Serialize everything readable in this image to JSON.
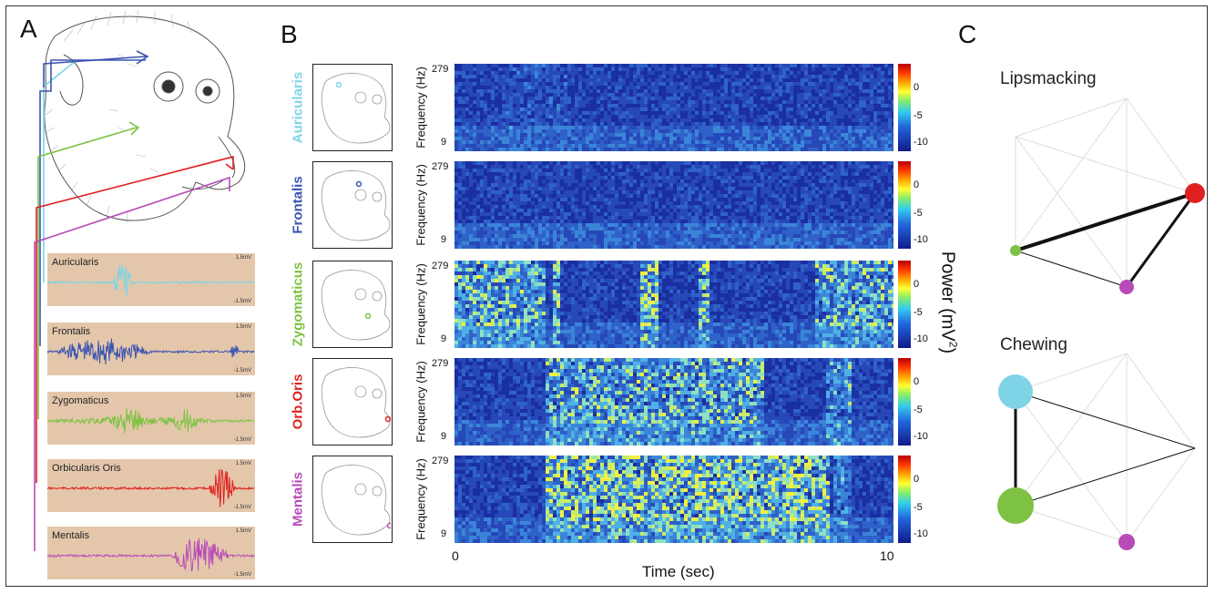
{
  "panels": {
    "a": "A",
    "b": "B",
    "c": "C"
  },
  "emg": [
    {
      "name": "Auricularis",
      "hi": "1.5mV",
      "lo": "-1.5mV",
      "color": "#7fd3e6"
    },
    {
      "name": "Frontalis",
      "hi": "1.5mV",
      "lo": "-1.5mV",
      "color": "#3a55b0"
    },
    {
      "name": "Zygomaticus",
      "hi": "1.5mV",
      "lo": "-1.5mV",
      "color": "#7dc242"
    },
    {
      "name": "Orbicularis Oris",
      "hi": "1.5mV",
      "lo": "-1.5mV",
      "color": "#e02020"
    },
    {
      "name": "Mentalis",
      "hi": "1.5mV",
      "lo": "-1.5mV",
      "color": "#b74bb8"
    }
  ],
  "spectrograms": [
    {
      "label": "Auricularis",
      "color": "#7fd3e6"
    },
    {
      "label": "Frontalis",
      "color": "#3a55b0"
    },
    {
      "label": "Zygomaticus",
      "color": "#7dc242"
    },
    {
      "label": "Orb.Oris",
      "color": "#e02020"
    },
    {
      "label": "Mentalis",
      "color": "#b74bb8"
    }
  ],
  "axis": {
    "ylabel": "Frequency (Hz)",
    "ytick_top": "279",
    "ytick_bottom": "9",
    "xlabel": "Time (sec)",
    "xtick_start": "0",
    "xtick_end": "10"
  },
  "colorbar": {
    "label": "Power (mV",
    "label_sup": "2",
    "label_end": ")",
    "ticks": [
      "0",
      "-5",
      "-10"
    ]
  },
  "networks": {
    "lipsmacking": "Lipsmacking",
    "chewing": "Chewing"
  }
}
